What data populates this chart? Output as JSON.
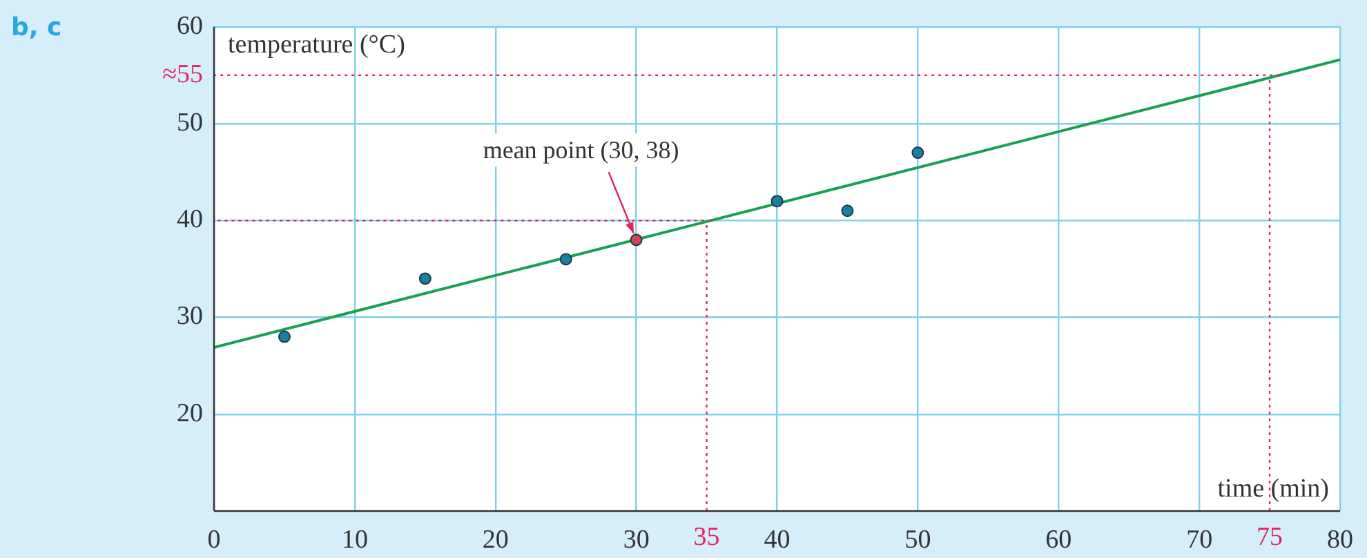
{
  "chart_data": {
    "type": "scatter",
    "xlabel": "time (min)",
    "ylabel": "temperature (°C)",
    "xlim": [
      0,
      80
    ],
    "xticks": [
      0,
      10,
      20,
      30,
      40,
      50,
      60,
      70,
      80
    ],
    "ylim": [
      10,
      60
    ],
    "yticks": [
      20,
      30,
      40,
      50,
      60
    ],
    "grid": true,
    "legend": false,
    "marker": "circle",
    "series": [
      {
        "x": [
          5,
          15,
          25,
          30,
          40,
          45,
          50
        ],
        "values": [
          28,
          34,
          36,
          38,
          42,
          41,
          47
        ],
        "colors": [
          "#1a7fa0",
          "#1a7fa0",
          "#1a7fa0",
          "#d0405a",
          "#1a7fa0",
          "#1a7fa0",
          "#1a7fa0"
        ]
      },
      {
        "type": "line",
        "x": [
          0,
          80
        ],
        "values": [
          26.9,
          56.6
        ],
        "color": "#1aa050",
        "line_style": "solid",
        "marker": "none"
      }
    ],
    "ref_lines": [
      {
        "axis": "y",
        "value": 55,
        "label": "≈55",
        "color": "#e0245e",
        "line_style": "dotted"
      },
      {
        "axis": "x",
        "value": 75,
        "label": "75",
        "color": "#e0245e",
        "line_style": "dotted"
      },
      {
        "axis": "y",
        "value": 40,
        "label": null,
        "color": "#e0245e",
        "line_style": "dotted"
      },
      {
        "axis": "x",
        "value": 35,
        "label": "35",
        "color": "#e0245e",
        "line_style": "dotted"
      }
    ],
    "annotations": [
      "b, c",
      {
        "text": "mean point (30, 38)",
        "x": 30,
        "y": 38
      }
    ]
  }
}
